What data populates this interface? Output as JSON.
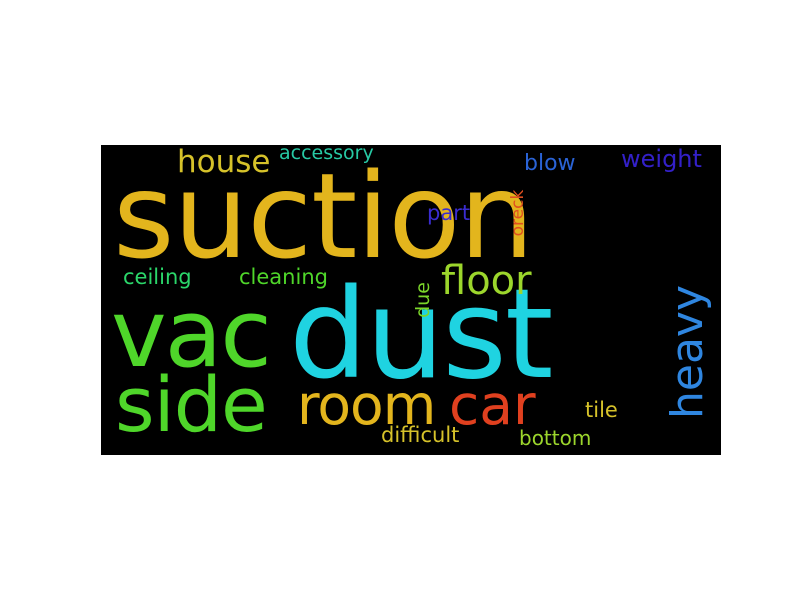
{
  "word_cloud": {
    "background_color": "#000000",
    "words": [
      {
        "text": "suction",
        "color": "#e3b51d"
      },
      {
        "text": "dust",
        "color": "#1fd3e1"
      },
      {
        "text": "vac",
        "color": "#4fd62a"
      },
      {
        "text": "side",
        "color": "#4fd62a"
      },
      {
        "text": "room",
        "color": "#e3b51d"
      },
      {
        "text": "car",
        "color": "#e0401f"
      },
      {
        "text": "heavy",
        "color": "#2f86e0"
      },
      {
        "text": "floor",
        "color": "#9cd62c"
      },
      {
        "text": "house",
        "color": "#d6c22a"
      },
      {
        "text": "accessory",
        "color": "#27c9a4"
      },
      {
        "text": "blow",
        "color": "#2a63d6"
      },
      {
        "text": "weight",
        "color": "#3320c8"
      },
      {
        "text": "part",
        "color": "#3a2cd0"
      },
      {
        "text": "oreck",
        "color": "#e04f1f"
      },
      {
        "text": "ceiling",
        "color": "#2bd66a"
      },
      {
        "text": "cleaning",
        "color": "#4fd62a"
      },
      {
        "text": "due",
        "color": "#7bd62a"
      },
      {
        "text": "tile",
        "color": "#d6c22a"
      },
      {
        "text": "difficult",
        "color": "#d6c22a"
      },
      {
        "text": "bottom",
        "color": "#9cd62c"
      }
    ]
  }
}
